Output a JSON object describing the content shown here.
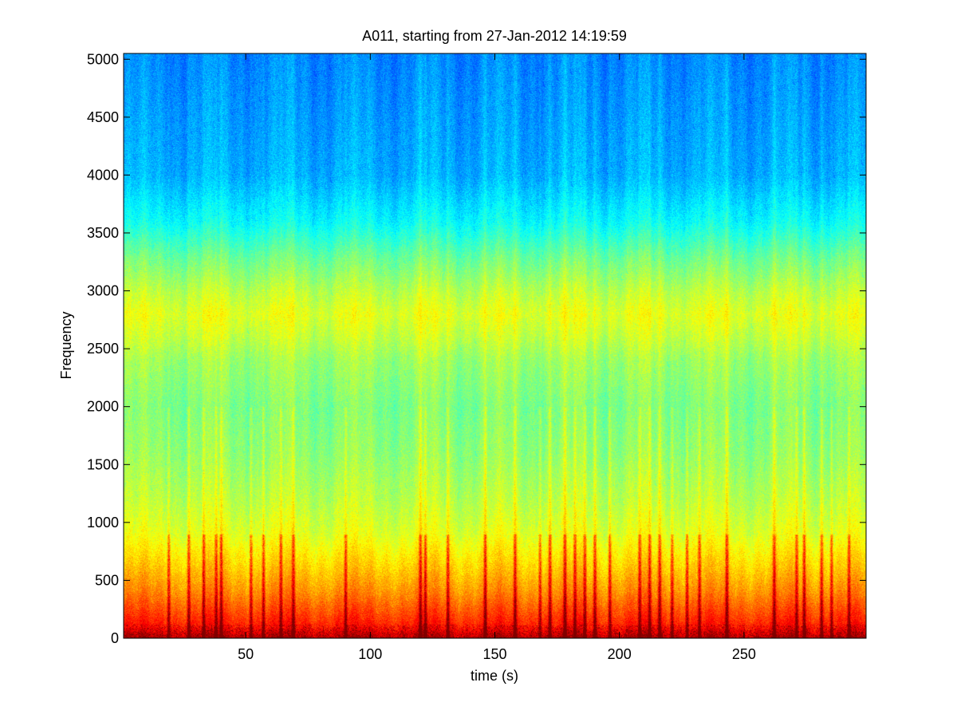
{
  "chart_data": {
    "type": "heatmap",
    "title": "A011, starting from 27-Jan-2012 14:19:59",
    "xlabel": "time (s)",
    "ylabel": "Frequency",
    "xlim": [
      1,
      299
    ],
    "ylim": [
      0,
      5050
    ],
    "x_ticks": [
      50,
      100,
      150,
      200,
      250
    ],
    "y_ticks": [
      0,
      500,
      1000,
      1500,
      2000,
      2500,
      3000,
      3500,
      4000,
      4500,
      5000
    ],
    "grid": false,
    "legend": "none",
    "colormap": "jet",
    "colors": {
      "low": "#2fe6d0",
      "mid": "#9ee85a",
      "high": "#ffff1a",
      "peak": "#e8401a"
    },
    "spectral_profile": {
      "frequency": [
        0,
        100,
        250,
        400,
        600,
        900,
        1200,
        1600,
        2000,
        2400,
        2600,
        2800,
        3000,
        3300,
        3600,
        4000,
        5000
      ],
      "relative_level": [
        0.95,
        0.86,
        0.8,
        0.74,
        0.68,
        0.6,
        0.56,
        0.52,
        0.5,
        0.53,
        0.57,
        0.6,
        0.56,
        0.48,
        0.38,
        0.3,
        0.26
      ]
    },
    "transient_events_time": [
      19,
      27,
      33,
      38,
      40,
      52,
      57,
      64,
      69,
      90,
      120,
      122,
      131,
      146,
      158,
      168,
      172,
      178,
      182,
      186,
      190,
      196,
      208,
      212,
      216,
      221,
      227,
      232,
      243,
      262,
      271,
      274,
      281,
      285,
      292
    ]
  }
}
